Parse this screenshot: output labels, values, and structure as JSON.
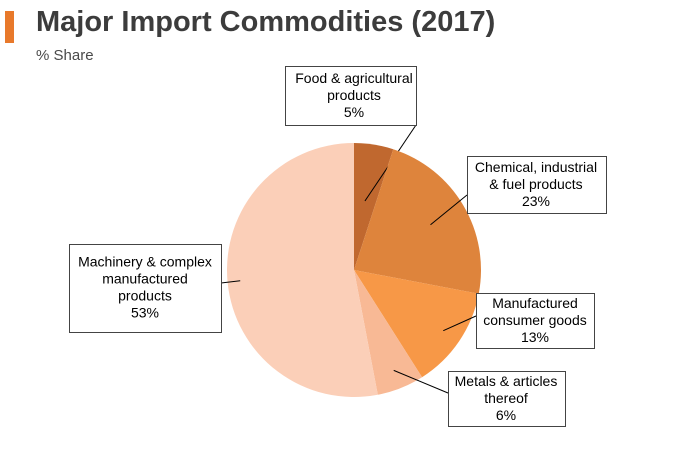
{
  "header": {
    "title": "Major Import Commodities (2017)",
    "subtitle": "% Share"
  },
  "colors": {
    "accent": "#e8792b",
    "title_text": "#3c3c3c"
  },
  "chart_data": {
    "type": "pie",
    "title": "Major Import Commodities (2017)",
    "subtitle": "% Share",
    "start_angle_deg": 0,
    "direction": "clockwise",
    "slices": [
      {
        "name": "Food & agricultural products",
        "value": 5,
        "label_lines": [
          "Food & agricultural",
          "products",
          "5%"
        ],
        "color": "#c0682f"
      },
      {
        "name": "Chemical, industrial & fuel products",
        "value": 23,
        "label_lines": [
          "Chemical, industrial",
          "& fuel products",
          "23%"
        ],
        "color": "#de843c"
      },
      {
        "name": "Manufactured consumer goods",
        "value": 13,
        "label_lines": [
          "Manufactured",
          "consumer goods",
          "13%"
        ],
        "color": "#f79847"
      },
      {
        "name": "Metals & articles thereof",
        "value": 6,
        "label_lines": [
          "Metals & articles",
          "thereof",
          "6%"
        ],
        "color": "#f8b995"
      },
      {
        "name": "Machinery & complex manufactured products",
        "value": 53,
        "label_lines": [
          "Machinery & complex",
          "manufactured",
          "products",
          "53%"
        ],
        "color": "#fbcfb8"
      }
    ]
  }
}
